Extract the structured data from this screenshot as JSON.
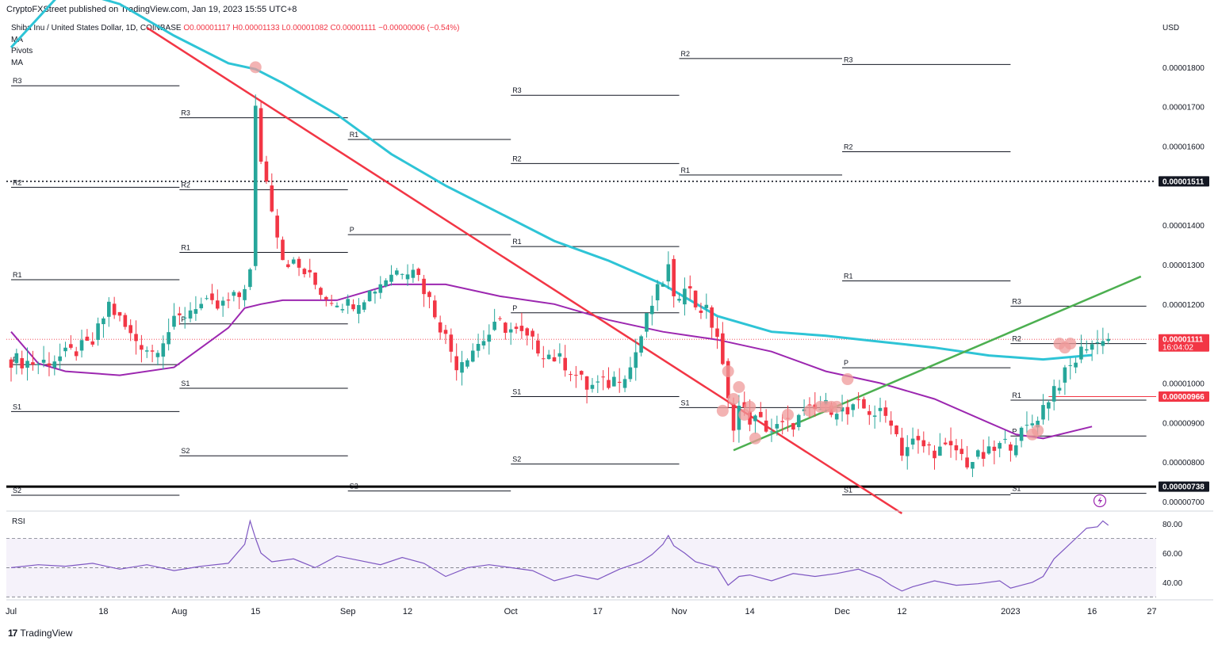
{
  "header": {
    "publisher_line": "CryptoFXStreet published on TradingView.com, Jan 19, 2023 15:55 UTC+8"
  },
  "legend": {
    "symbol": "Shiba Inu / United States Dollar, 1D, COINBASE",
    "ohlc": "O0.00001117 H0.00001133 L0.00001082 C0.00001111 −0.00000006 (−0.54%)",
    "indicators": [
      "MA",
      "Pivots",
      "MA"
    ]
  },
  "footer": {
    "logo_text": "TradingView"
  },
  "colors": {
    "up": "#26a69a",
    "down": "#f23645",
    "ma_fast": "#2ec4d6",
    "ma_slow": "#9c27b0",
    "trend_down": "#f23645",
    "trend_up": "#4caf50",
    "rsi": "#7e57c2",
    "markers": "#ef9a9a"
  },
  "chart_data": [
    {
      "type": "candlestick",
      "title": "Shiba Inu / United States Dollar, 1D, COINBASE",
      "currency_label": "USD",
      "price_ticks": [
        "0.00001800",
        "0.00001700",
        "0.00001600",
        "0.00001400",
        "0.00001300",
        "0.00001200",
        "0.00001000",
        "0.00000900",
        "0.00000800",
        "0.00000700"
      ],
      "ylim": [
        6.8e-06,
        1.91e-05
      ],
      "x_ticks": [
        {
          "label": "Jul",
          "day": 0
        },
        {
          "label": "18",
          "day": 17
        },
        {
          "label": "Aug",
          "day": 31
        },
        {
          "label": "15",
          "day": 45
        },
        {
          "label": "Sep",
          "day": 62
        },
        {
          "label": "12",
          "day": 73
        },
        {
          "label": "Oct",
          "day": 92
        },
        {
          "label": "17",
          "day": 108
        },
        {
          "label": "Nov",
          "day": 123
        },
        {
          "label": "14",
          "day": 136
        },
        {
          "label": "Dec",
          "day": 153
        },
        {
          "label": "12",
          "day": 164
        },
        {
          "label": "2023",
          "day": 184
        },
        {
          "label": "16",
          "day": 199
        },
        {
          "label": "27",
          "day": 210
        }
      ],
      "price_labels": [
        {
          "text": "0.00001511",
          "value": 1.511e-05,
          "style": "dark"
        },
        {
          "text": "0.00001111",
          "value": 1.111e-05,
          "style": "red",
          "sub": "16:04:02"
        },
        {
          "text": "0.00000966",
          "value": 9.66e-06,
          "style": "red"
        },
        {
          "text": "0.00000738",
          "value": 7.38e-06,
          "style": "dark"
        }
      ],
      "horizontal_levels": [
        {
          "value": 1.511e-05,
          "style": "dotted"
        },
        {
          "value": 7.38e-06,
          "style": "thick"
        }
      ],
      "pivots": [
        {
          "start": 0,
          "end": 31,
          "levels": [
            [
              "R3",
              1.753e-05
            ],
            [
              "R2",
              1.496e-05
            ],
            [
              "R1",
              1.262e-05
            ],
            [
              "P",
              1.047e-05
            ],
            [
              "S1",
              9.28e-06
            ],
            [
              "S2",
              7.16e-06
            ]
          ]
        },
        {
          "start": 31,
          "end": 62,
          "levels": [
            [
              "R3",
              1.672e-05
            ],
            [
              "R2",
              1.49e-05
            ],
            [
              "R1",
              1.331e-05
            ],
            [
              "P",
              1.15e-05
            ],
            [
              "S1",
              9.87e-06
            ],
            [
              "S2",
              8.16e-06
            ]
          ]
        },
        {
          "start": 62,
          "end": 92,
          "levels": [
            [
              "R1",
              1.617e-05
            ],
            [
              "P",
              1.376e-05
            ],
            [
              "S2",
              7.27e-06
            ]
          ]
        },
        {
          "start": 92,
          "end": 123,
          "levels": [
            [
              "R3",
              1.729e-05
            ],
            [
              "R2",
              1.556e-05
            ],
            [
              "R1",
              1.346e-05
            ],
            [
              "P",
              1.178e-05
            ],
            [
              "S1",
              9.66e-06
            ],
            [
              "S2",
              7.95e-06
            ]
          ]
        },
        {
          "start": 123,
          "end": 153,
          "levels": [
            [
              "R2",
              1.822e-05
            ],
            [
              "R1",
              1.527e-05
            ],
            [
              "S1",
              9.38e-06
            ]
          ]
        },
        {
          "start": 153,
          "end": 184,
          "levels": [
            [
              "R3",
              1.807e-05
            ],
            [
              "R2",
              1.586e-05
            ],
            [
              "R1",
              1.259e-05
            ],
            [
              "P",
              1.039e-05
            ],
            [
              "S1",
              7.17e-06
            ]
          ]
        },
        {
          "start": 184,
          "end": 209,
          "levels": [
            [
              "R3",
              1.195e-05
            ],
            [
              "R2",
              1.1e-05
            ],
            [
              "R1",
              9.57e-06
            ],
            [
              "P",
              8.66e-06
            ],
            [
              "S1",
              7.21e-06
            ]
          ]
        }
      ],
      "ma_fast": {
        "days": [
          0,
          10,
          20,
          30,
          40,
          45,
          50,
          60,
          70,
          80,
          90,
          100,
          110,
          120,
          125,
          130,
          140,
          150,
          160,
          170,
          180,
          190,
          199
        ],
        "values": [
          1.85e-05,
          2e-05,
          1.96e-05,
          1.88e-05,
          1.81e-05,
          1.795e-05,
          1.76e-05,
          1.68e-05,
          1.58e-05,
          1.5e-05,
          1.43e-05,
          1.36e-05,
          1.31e-05,
          1.25e-05,
          1.21e-05,
          1.17e-05,
          1.13e-05,
          1.12e-05,
          1.105e-05,
          1.09e-05,
          1.07e-05,
          1.06e-05,
          1.071e-05
        ]
      },
      "ma_slow": {
        "days": [
          0,
          5,
          10,
          20,
          30,
          40,
          43,
          46,
          50,
          55,
          60,
          70,
          80,
          90,
          100,
          110,
          120,
          125,
          130,
          140,
          150,
          160,
          170,
          180,
          185,
          190,
          199
        ],
        "values": [
          1.13e-05,
          1.05e-05,
          1.03e-05,
          1.02e-05,
          1.04e-05,
          1.14e-05,
          1.19e-05,
          1.2e-05,
          1.21e-05,
          1.21e-05,
          1.21e-05,
          1.25e-05,
          1.25e-05,
          1.22e-05,
          1.2e-05,
          1.16e-05,
          1.13e-05,
          1.12e-05,
          1.11e-05,
          1.08e-05,
          1.03e-05,
          1e-05,
          9.6e-06,
          9e-06,
          8.7e-06,
          8.6e-06,
          8.9e-06
        ]
      },
      "trendline_down": {
        "from": {
          "day": 25,
          "value": 1.9e-05
        },
        "to": {
          "day": 164,
          "value": 6.7e-06
        }
      },
      "trendline_up": {
        "from": {
          "day": 133,
          "value": 8.3e-06
        },
        "to": {
          "day": 208,
          "value": 1.27e-05
        }
      },
      "close_path": {
        "days": [
          0,
          5,
          10,
          15,
          18,
          22,
          26,
          30,
          34,
          38,
          42,
          44,
          45,
          46,
          48,
          50,
          54,
          58,
          62,
          66,
          70,
          74,
          78,
          82,
          86,
          90,
          94,
          98,
          102,
          106,
          110,
          114,
          118,
          120,
          121,
          122,
          124,
          126,
          128,
          130,
          132,
          133,
          134,
          136,
          138,
          140,
          142,
          144,
          146,
          148,
          150,
          152,
          154,
          156,
          158,
          160,
          162,
          164,
          166,
          168,
          170,
          172,
          174,
          176,
          178,
          180,
          182,
          184,
          186,
          188,
          190,
          192,
          194,
          196,
          198,
          200,
          201,
          202
        ],
        "values": [
          1.06e-05,
          1.05e-05,
          1.07e-05,
          1.1e-05,
          1.2e-05,
          1.12e-05,
          1.08e-05,
          1.15e-05,
          1.2e-05,
          1.19e-05,
          1.22e-05,
          1.28e-05,
          1.69e-05,
          1.57e-05,
          1.45e-05,
          1.32e-05,
          1.28e-05,
          1.22e-05,
          1.2e-05,
          1.23e-05,
          1.28e-05,
          1.3e-05,
          1.18e-05,
          1.05e-05,
          1.1e-05,
          1.15e-05,
          1.12e-05,
          1.08e-05,
          1.05e-05,
          9.9e-06,
          1e-05,
          1.04e-05,
          1.2e-05,
          1.26e-05,
          1.29e-05,
          1.2e-05,
          1.26e-05,
          1.2e-05,
          1.18e-05,
          1.12e-05,
          9.5e-06,
          9e-06,
          9.4e-06,
          9.1e-06,
          9e-06,
          8.8e-06,
          8.9e-06,
          9e-06,
          9.2e-06,
          9.3e-06,
          9.4e-06,
          9.4e-06,
          9.2e-06,
          9.4e-06,
          9.3e-06,
          9.2e-06,
          9.1e-06,
          8.3e-06,
          8.5e-06,
          8.4e-06,
          8.3e-06,
          8.3e-06,
          8.3e-06,
          8e-06,
          8.1e-06,
          8.2e-06,
          8.4e-06,
          8.5e-06,
          8.7e-06,
          9e-06,
          9.4e-06,
          9.9e-06,
          1.02e-05,
          1.06e-05,
          1.1e-05,
          1.1e-05,
          1.12e-05,
          1.111e-05
        ]
      },
      "markers": [
        [
          45,
          1.8e-05
        ],
        [
          131,
          9.3e-06
        ],
        [
          132,
          1.03e-05
        ],
        [
          133,
          9.6e-06
        ],
        [
          134,
          9.9e-06
        ],
        [
          135,
          9.2e-06
        ],
        [
          136,
          9.4e-06
        ],
        [
          137,
          8.6e-06
        ],
        [
          143,
          9.2e-06
        ],
        [
          147,
          9.3e-06
        ],
        [
          149,
          9.4e-06
        ],
        [
          150,
          9.4e-06
        ],
        [
          151,
          9.4e-06
        ],
        [
          152,
          9.4e-06
        ],
        [
          154,
          1.01e-05
        ],
        [
          188,
          8.7e-06
        ],
        [
          189,
          8.8e-06
        ],
        [
          193,
          1.1e-05
        ],
        [
          194,
          1.09e-05
        ],
        [
          195,
          1.1e-05
        ]
      ]
    },
    {
      "type": "line",
      "title": "RSI",
      "y_ticks": [
        "80.00",
        "60.00",
        "40.00"
      ],
      "ylim": [
        28,
        86
      ],
      "bands": [
        30,
        50,
        70
      ],
      "series": [
        {
          "days": [
            0,
            5,
            10,
            15,
            20,
            25,
            30,
            35,
            40,
            43,
            44,
            45,
            46,
            48,
            52,
            56,
            60,
            64,
            68,
            72,
            76,
            80,
            84,
            88,
            92,
            96,
            100,
            104,
            108,
            112,
            116,
            118,
            120,
            121,
            122,
            124,
            126,
            128,
            130,
            131,
            132,
            134,
            136,
            140,
            144,
            148,
            152,
            156,
            160,
            162,
            164,
            166,
            170,
            174,
            178,
            182,
            184,
            186,
            188,
            190,
            192,
            194,
            196,
            198,
            200,
            201,
            202
          ],
          "values": [
            50,
            52,
            51,
            53,
            49,
            52,
            48,
            51,
            53,
            66,
            82,
            70,
            60,
            54,
            56,
            50,
            58,
            55,
            52,
            57,
            53,
            44,
            50,
            52,
            50,
            48,
            41,
            45,
            42,
            49,
            54,
            59,
            66,
            72,
            65,
            60,
            54,
            52,
            50,
            44,
            38,
            44,
            45,
            41,
            46,
            44,
            46,
            49,
            43,
            38,
            34,
            37,
            41,
            38,
            39,
            41,
            36,
            38,
            40,
            44,
            56,
            63,
            70,
            77,
            78,
            82,
            79
          ]
        }
      ]
    }
  ]
}
